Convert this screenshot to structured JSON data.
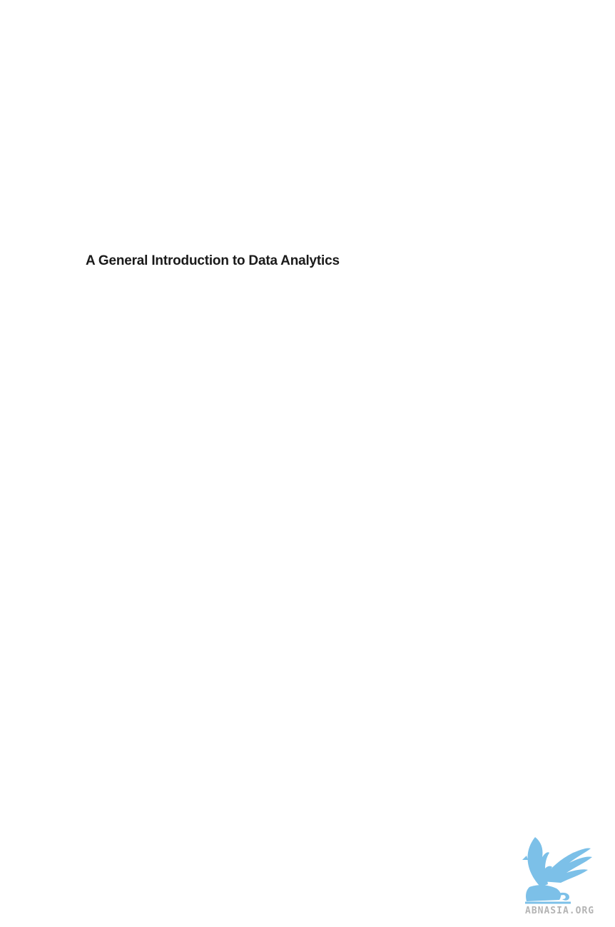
{
  "page": {
    "title": "A General Introduction to Data Analytics"
  },
  "watermark": {
    "text": "ABNASIA.ORG",
    "color": "#7cc0e8",
    "text_color": "#b4b4b4",
    "icon": "griffin-logo-icon"
  }
}
